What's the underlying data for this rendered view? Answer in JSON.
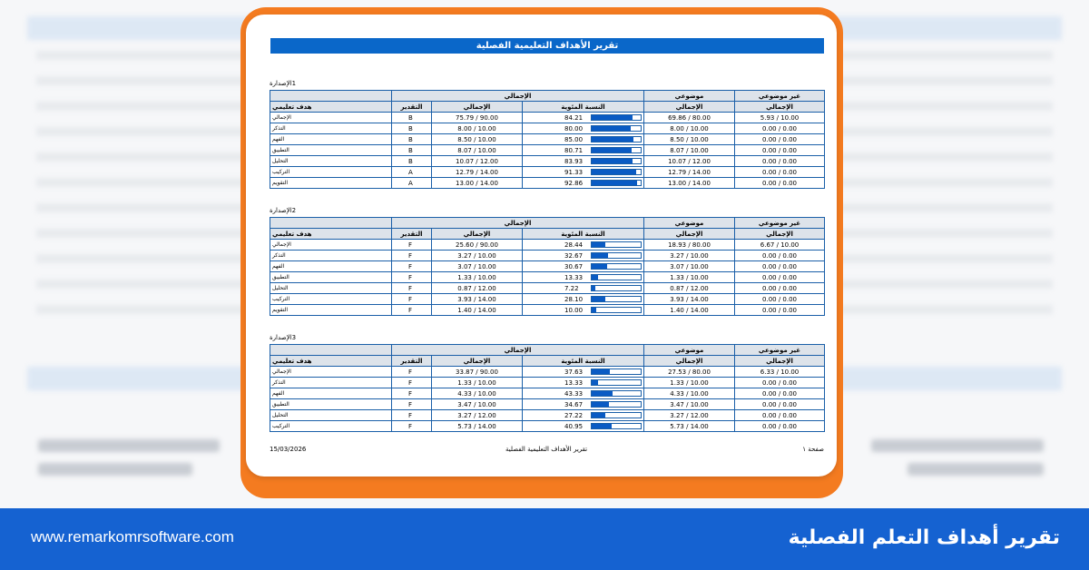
{
  "report_title": "تقرير الأهداف التعليمية الفصلية",
  "header": {
    "learning_goal": "هدف تعليمي",
    "total_group": "الإجمالي",
    "grade": "التقدير",
    "total": "الإجمالي",
    "percentage": "النسبة المئوية",
    "objective": "موضوعي",
    "non_objective": "غير موضوعي"
  },
  "version_word": "الإصدارة",
  "versions": [
    {
      "number": "1",
      "rows": [
        {
          "cat": "الإجمالي",
          "grade": "B",
          "total": "75.79  /  90.00",
          "pct": "84.21",
          "fill": 0.8421,
          "obj": "69.86  /  80.00",
          "nonobj": "5.93  /  10.00"
        },
        {
          "cat": "التذكر",
          "grade": "B",
          "total": "8.00  /  10.00",
          "pct": "80.00",
          "fill": 0.8,
          "obj": "8.00  /  10.00",
          "nonobj": "0.00  /  0.00"
        },
        {
          "cat": "الفهم",
          "grade": "B",
          "total": "8.50  /  10.00",
          "pct": "85.00",
          "fill": 0.85,
          "obj": "8.50  /  10.00",
          "nonobj": "0.00  /  0.00"
        },
        {
          "cat": "التطبيق",
          "grade": "B",
          "total": "8.07  /  10.00",
          "pct": "80.71",
          "fill": 0.8071,
          "obj": "8.07  /  10.00",
          "nonobj": "0.00  /  0.00"
        },
        {
          "cat": "التحليل",
          "grade": "B",
          "total": "10.07  /  12.00",
          "pct": "83.93",
          "fill": 0.8393,
          "obj": "10.07  /  12.00",
          "nonobj": "0.00  /  0.00"
        },
        {
          "cat": "التركيب",
          "grade": "A",
          "total": "12.79  /  14.00",
          "pct": "91.33",
          "fill": 0.9133,
          "obj": "12.79  /  14.00",
          "nonobj": "0.00  /  0.00"
        },
        {
          "cat": "التقويم",
          "grade": "A",
          "total": "13.00  /  14.00",
          "pct": "92.86",
          "fill": 0.9286,
          "obj": "13.00  /  14.00",
          "nonobj": "0.00  /  0.00"
        }
      ]
    },
    {
      "number": "2",
      "rows": [
        {
          "cat": "الإجمالي",
          "grade": "F",
          "total": "25.60  /  90.00",
          "pct": "28.44",
          "fill": 0.2844,
          "obj": "18.93  /  80.00",
          "nonobj": "6.67  /  10.00"
        },
        {
          "cat": "التذكر",
          "grade": "F",
          "total": "3.27  /  10.00",
          "pct": "32.67",
          "fill": 0.3267,
          "obj": "3.27  /  10.00",
          "nonobj": "0.00  /  0.00"
        },
        {
          "cat": "الفهم",
          "grade": "F",
          "total": "3.07  /  10.00",
          "pct": "30.67",
          "fill": 0.3067,
          "obj": "3.07  /  10.00",
          "nonobj": "0.00  /  0.00"
        },
        {
          "cat": "التطبيق",
          "grade": "F",
          "total": "1.33  /  10.00",
          "pct": "13.33",
          "fill": 0.1333,
          "obj": "1.33  /  10.00",
          "nonobj": "0.00  /  0.00"
        },
        {
          "cat": "التحليل",
          "grade": "F",
          "total": "0.87  /  12.00",
          "pct": "7.22",
          "fill": 0.0722,
          "obj": "0.87  /  12.00",
          "nonobj": "0.00  /  0.00"
        },
        {
          "cat": "التركيب",
          "grade": "F",
          "total": "3.93  /  14.00",
          "pct": "28.10",
          "fill": 0.281,
          "obj": "3.93  /  14.00",
          "nonobj": "0.00  /  0.00"
        },
        {
          "cat": "التقويم",
          "grade": "F",
          "total": "1.40  /  14.00",
          "pct": "10.00",
          "fill": 0.1,
          "obj": "1.40  /  14.00",
          "nonobj": "0.00  /  0.00"
        }
      ]
    },
    {
      "number": "3",
      "rows": [
        {
          "cat": "الإجمالي",
          "grade": "F",
          "total": "33.87  /  90.00",
          "pct": "37.63",
          "fill": 0.3763,
          "obj": "27.53  /  80.00",
          "nonobj": "6.33  /  10.00"
        },
        {
          "cat": "التذكر",
          "grade": "F",
          "total": "1.33  /  10.00",
          "pct": "13.33",
          "fill": 0.1333,
          "obj": "1.33  /  10.00",
          "nonobj": "0.00  /  0.00"
        },
        {
          "cat": "الفهم",
          "grade": "F",
          "total": "4.33  /  10.00",
          "pct": "43.33",
          "fill": 0.4333,
          "obj": "4.33  /  10.00",
          "nonobj": "0.00  /  0.00"
        },
        {
          "cat": "التطبيق",
          "grade": "F",
          "total": "3.47  /  10.00",
          "pct": "34.67",
          "fill": 0.3467,
          "obj": "3.47  /  10.00",
          "nonobj": "0.00  /  0.00"
        },
        {
          "cat": "التحليل",
          "grade": "F",
          "total": "3.27  /  12.00",
          "pct": "27.22",
          "fill": 0.2722,
          "obj": "3.27  /  12.00",
          "nonobj": "0.00  /  0.00"
        },
        {
          "cat": "التركيب",
          "grade": "F",
          "total": "5.73  /  14.00",
          "pct": "40.95",
          "fill": 0.4095,
          "obj": "5.73  /  14.00",
          "nonobj": "0.00  /  0.00"
        }
      ]
    }
  ],
  "footer": {
    "date": "15/03/2026",
    "title": "تقرير الأهداف التعليمية الفصلية",
    "page": "صفحة ١"
  },
  "banner": {
    "url": "www.remarkomrsoftware.com",
    "title": "تقرير أهداف التعلم الفصلية"
  },
  "colors": {
    "accent_blue": "#0a67c9",
    "frame_orange": "#f47b20",
    "banner_blue": "#1562d1",
    "bar_fill": "#0a5bc4"
  }
}
